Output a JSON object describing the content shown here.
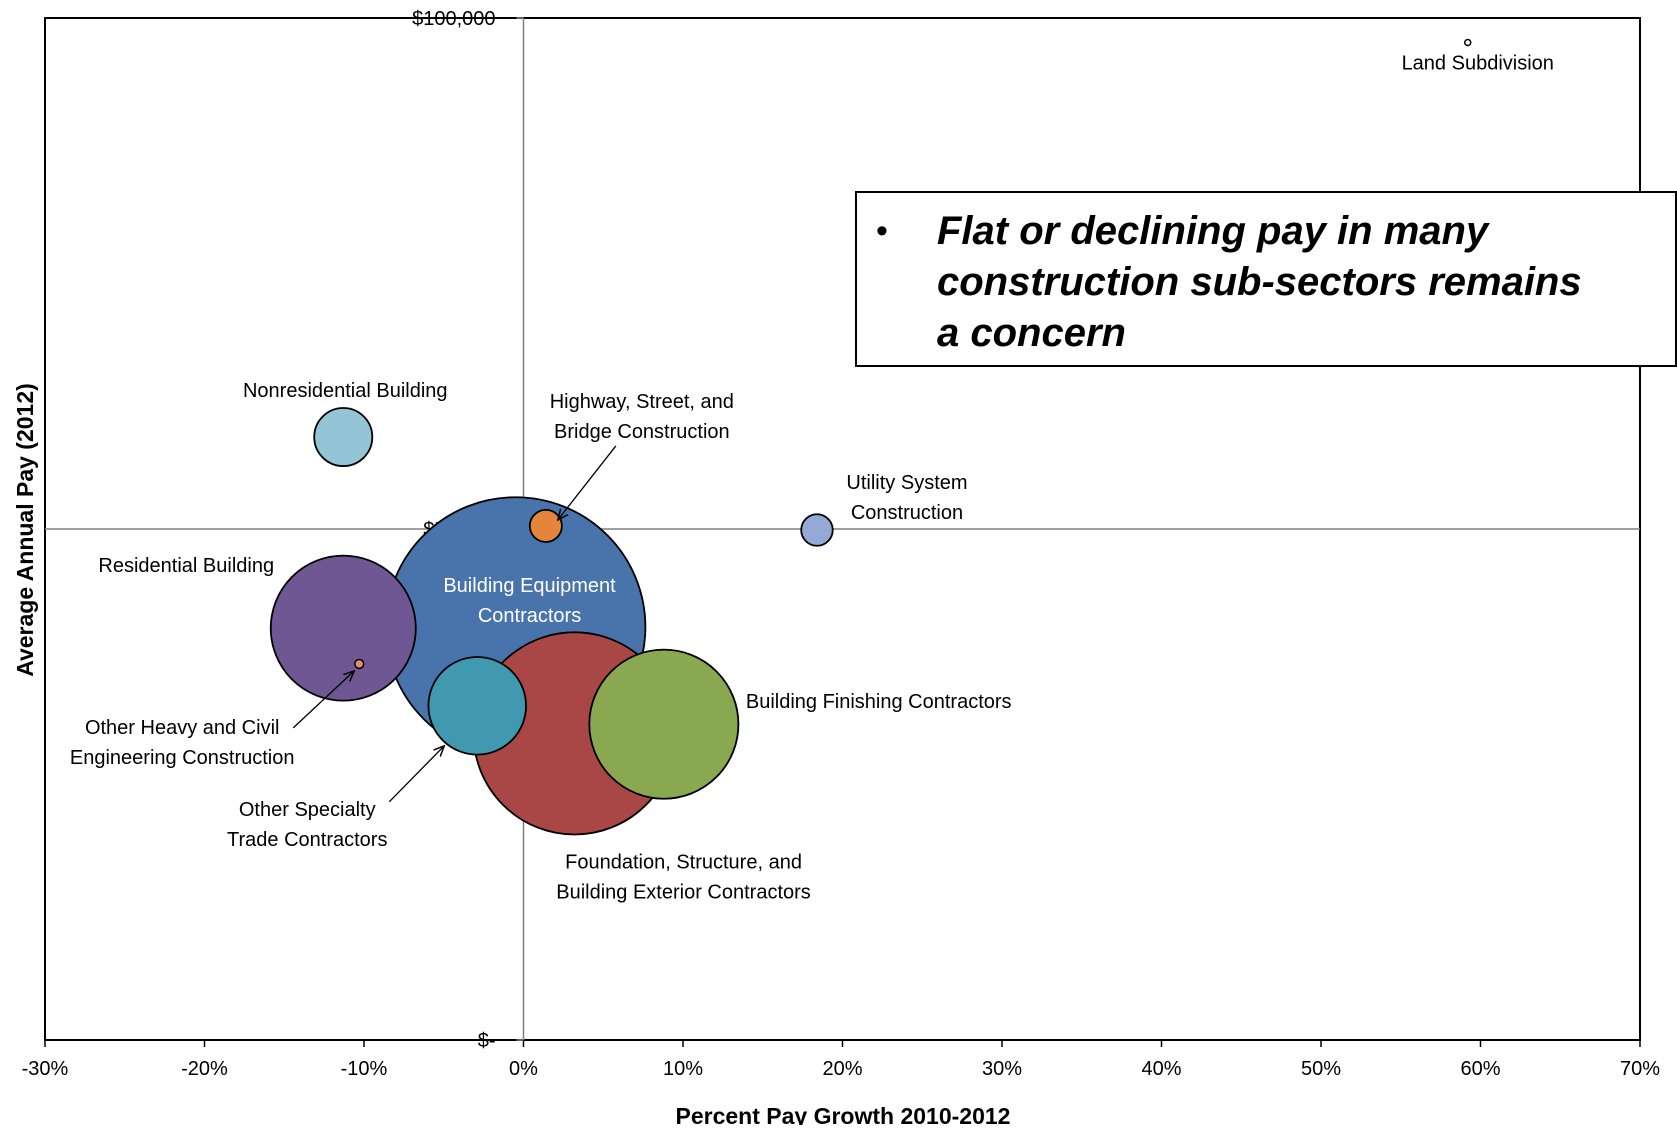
{
  "chart_data": {
    "type": "scatter",
    "subtype": "bubble",
    "xlabel": "Percent Pay Growth 2010-2012",
    "ylabel": "Average Annual Pay (2012)",
    "xlim": [
      -30,
      70
    ],
    "ylim": [
      0,
      100000
    ],
    "x_ticks": [
      -30,
      -20,
      -10,
      0,
      10,
      20,
      30,
      40,
      50,
      60,
      70
    ],
    "x_tick_labels": [
      "-30%",
      "-20%",
      "-10%",
      "0%",
      "10%",
      "20%",
      "30%",
      "40%",
      "50%",
      "60%",
      "70%"
    ],
    "y_ticks": [
      0,
      50000,
      100000
    ],
    "y_tick_labels": [
      "$-",
      "$50,000",
      "$100,000"
    ],
    "grid": false,
    "callout": {
      "bullet": "•",
      "lines": [
        "Flat or declining pay in many",
        "construction sub-sectors remains",
        "a concern"
      ]
    },
    "points": [
      {
        "label": [
          "Land Subdivision"
        ],
        "x": 59.2,
        "y": 97600,
        "size": 0.006,
        "color": "#ffffff"
      },
      {
        "label": [
          "Nonresidential Building"
        ],
        "x": -11.3,
        "y": 59000,
        "size": 0.85,
        "color": "#93c5d6"
      },
      {
        "label": [
          "Highway, Street, and",
          "Bridge Construction"
        ],
        "x": 1.4,
        "y": 50300,
        "size": 0.26,
        "color": "#e5853b"
      },
      {
        "label": [
          "Utility System",
          "Construction"
        ],
        "x": 18.4,
        "y": 49900,
        "size": 0.25,
        "color": "#94a9d6"
      },
      {
        "label": [
          "Building Equipment",
          "Contractors"
        ],
        "x": -0.5,
        "y": 40400,
        "size": 17.0,
        "color": "#4874ab"
      },
      {
        "label": [
          "Residential Building"
        ],
        "x": -11.3,
        "y": 40300,
        "size": 5.3,
        "color": "#6f5793"
      },
      {
        "label": [
          "Other Heavy and Civil",
          "Engineering Construction"
        ],
        "x": -10.3,
        "y": 36800,
        "size": 0.02,
        "color": "#e0906b"
      },
      {
        "label": [
          "Foundation, Structure, and",
          "Building Exterior Contractors"
        ],
        "x": 3.2,
        "y": 30000,
        "size": 10.3,
        "color": "#a84745"
      },
      {
        "label": [
          "Other Specialty",
          "Trade Contractors"
        ],
        "x": -2.9,
        "y": 32700,
        "size": 2.4,
        "color": "#4199af"
      },
      {
        "label": [
          "Building Finishing Contractors"
        ],
        "x": 8.8,
        "y": 30900,
        "size": 5.6,
        "color": "#8aa84f"
      }
    ]
  }
}
